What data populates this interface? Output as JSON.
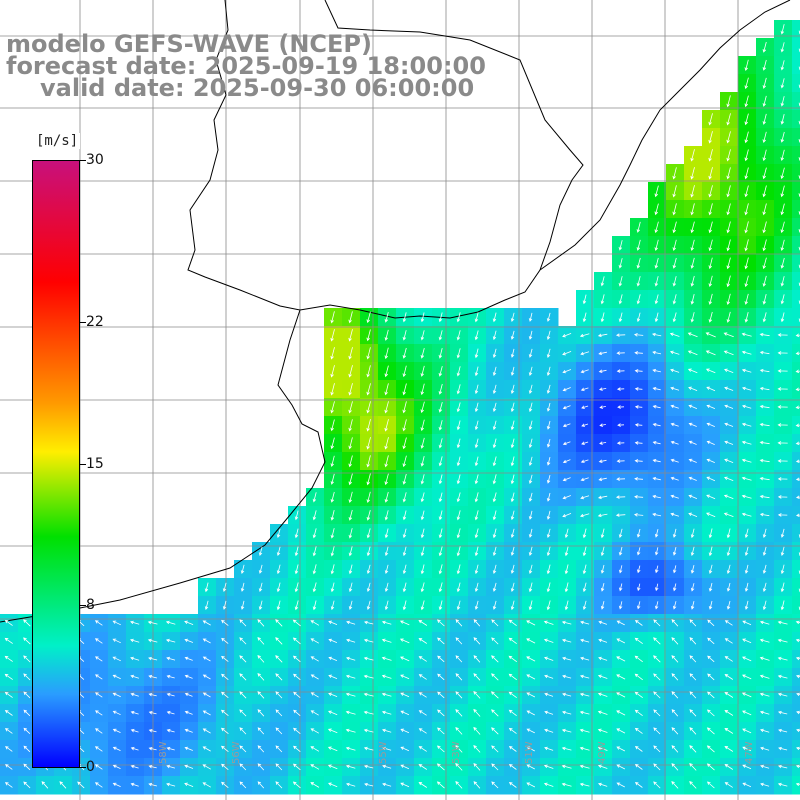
{
  "header": {
    "line1": "modelo GEFS-WAVE (NCEP)",
    "line2": "forecast date: 2025-09-19 18:00:00",
    "line3": "valid date: 2025-09-30 06:00:00"
  },
  "colorbar": {
    "unit": "[m/s]",
    "ticks": [
      {
        "label": "30",
        "value": 30
      },
      {
        "label": "22",
        "value": 22
      },
      {
        "label": "15",
        "value": 15
      },
      {
        "label": "8",
        "value": 8
      },
      {
        "label": "0",
        "value": 0
      }
    ],
    "min": 0,
    "max": 30,
    "colors": [
      "#0000ff",
      "#2a9cff",
      "#00f0c8",
      "#00e000",
      "#ffee00",
      "#ff9a00",
      "#ff0000",
      "#c8107c"
    ]
  },
  "map": {
    "lon_labels": [
      "58W",
      "56W",
      "55W",
      "53W",
      "51W",
      "49W",
      "47W"
    ],
    "land_color": "#ffffff",
    "arrow_color": "#ffffff"
  }
}
